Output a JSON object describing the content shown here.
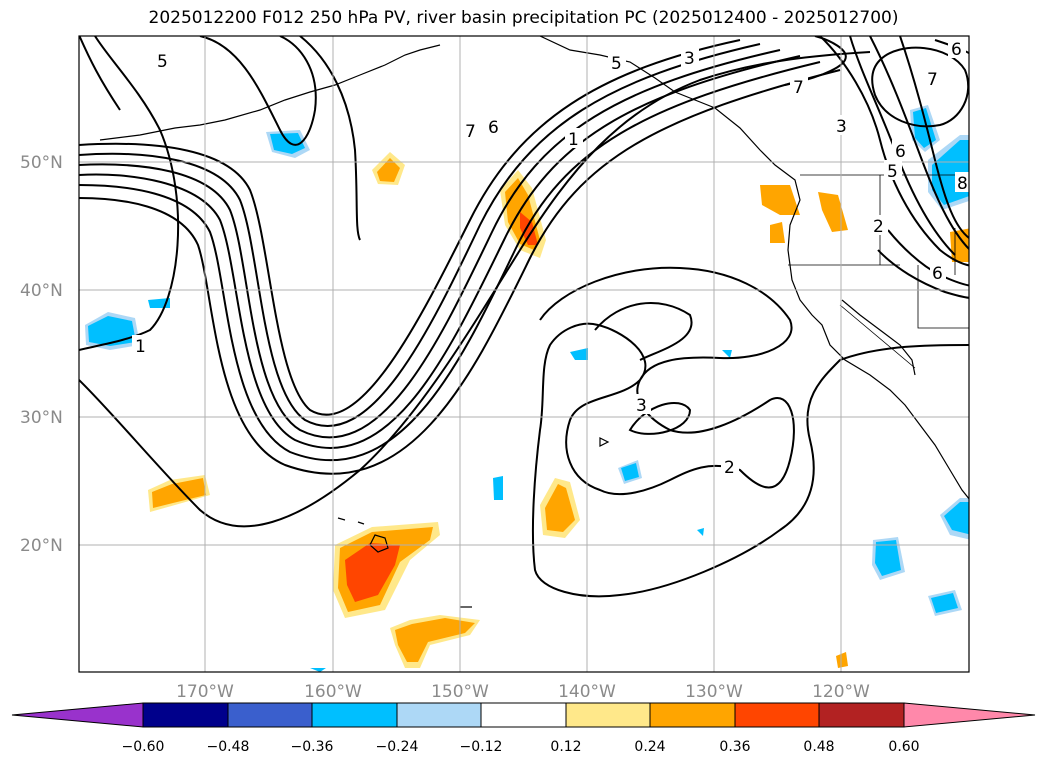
{
  "title": "2025012200 F012 250 hPa PV, river basin precipitation PC (2025012400 - 2025012700)",
  "map": {
    "lat_labels": [
      "50°N",
      "40°N",
      "30°N",
      "20°N"
    ],
    "lon_labels": [
      "170°W",
      "160°W",
      "150°W",
      "140°W",
      "130°W",
      "120°W"
    ],
    "contour_labels": [
      "5",
      "7",
      "6",
      "1",
      "5",
      "3",
      "7",
      "3",
      "6",
      "6",
      "7",
      "5",
      "2",
      "3",
      "2",
      "1",
      "8",
      "6"
    ],
    "pv_contour_color": "#000000",
    "grid_color": "#b0b0b0"
  },
  "colorbar": {
    "ticks": [
      "−0.60",
      "−0.48",
      "−0.36",
      "−0.24",
      "−0.12",
      "0.12",
      "0.24",
      "0.36",
      "0.48",
      "0.60"
    ],
    "colors": [
      "#9932cc",
      "#00008b",
      "#3a5fcd",
      "#00bfff",
      "#add8f6",
      "#ffffff",
      "#ffe88a",
      "#ffa500",
      "#ff4500",
      "#b22222",
      "#ff88aa"
    ]
  }
}
